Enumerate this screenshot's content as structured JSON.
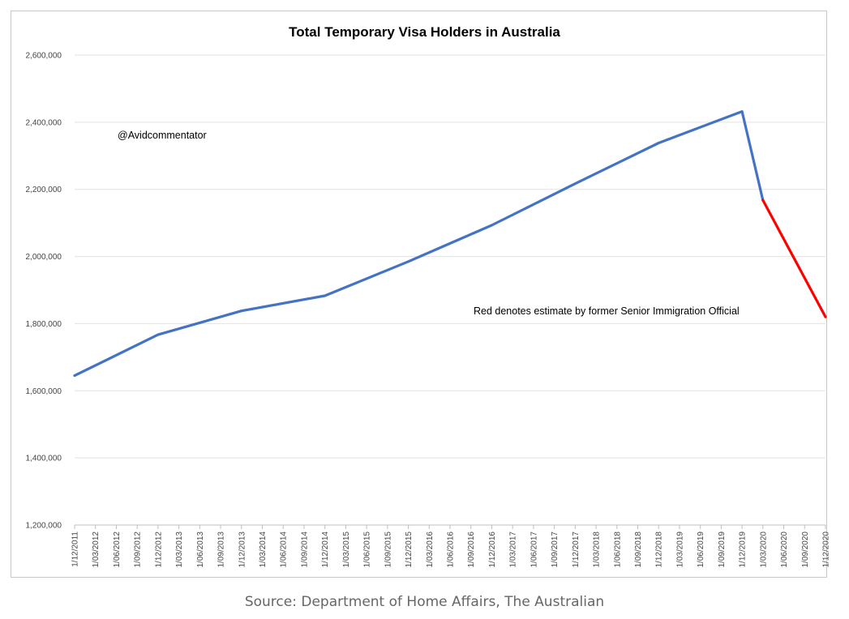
{
  "chart_data": {
    "type": "line",
    "title": "Total Temporary Visa Holders in Australia",
    "xlabel": "",
    "ylabel": "",
    "ylim": [
      1200000,
      2600000
    ],
    "yticks": [
      1200000,
      1400000,
      1600000,
      1800000,
      2000000,
      2200000,
      2400000,
      2600000
    ],
    "ytick_labels": [
      "1,200,000",
      "1,400,000",
      "1,600,000",
      "1,800,000",
      "2,000,000",
      "2,200,000",
      "2,400,000",
      "2,600,000"
    ],
    "grid": true,
    "categories": [
      "1/12/2011",
      "1/03/2012",
      "1/06/2012",
      "1/09/2012",
      "1/12/2012",
      "1/03/2013",
      "1/06/2013",
      "1/09/2013",
      "1/12/2013",
      "1/03/2014",
      "1/06/2014",
      "1/09/2014",
      "1/12/2014",
      "1/03/2015",
      "1/06/2015",
      "1/09/2015",
      "1/12/2015",
      "1/03/2016",
      "1/06/2016",
      "1/09/2016",
      "1/12/2016",
      "1/03/2017",
      "1/06/2017",
      "1/09/2017",
      "1/12/2017",
      "1/03/2018",
      "1/06/2018",
      "1/09/2018",
      "1/12/2018",
      "1/03/2019",
      "1/06/2019",
      "1/09/2019",
      "1/12/2019",
      "1/03/2020",
      "1/06/2020",
      "1/09/2020",
      "1/12/2020"
    ],
    "series": [
      {
        "color": "#4472c4",
        "values": [
          1645000,
          null,
          null,
          null,
          1767000,
          null,
          null,
          null,
          1838000,
          null,
          null,
          null,
          1883000,
          null,
          null,
          null,
          1985000,
          null,
          null,
          null,
          2093000,
          null,
          null,
          null,
          2217000,
          null,
          null,
          null,
          2338000,
          null,
          null,
          null,
          2432000,
          2168000,
          null,
          null,
          null
        ]
      },
      {
        "color": "#ff0000",
        "values": [
          null,
          null,
          null,
          null,
          null,
          null,
          null,
          null,
          null,
          null,
          null,
          null,
          null,
          null,
          null,
          null,
          null,
          null,
          null,
          null,
          null,
          null,
          null,
          null,
          null,
          null,
          null,
          null,
          null,
          null,
          null,
          null,
          null,
          2168000,
          null,
          null,
          1820000
        ]
      }
    ],
    "annotations": [
      "@Avidcommentator",
      "Red denotes estimate by former Senior Immigration Official"
    ]
  },
  "source_caption": "Source: Department of Home Affairs, The Australian"
}
